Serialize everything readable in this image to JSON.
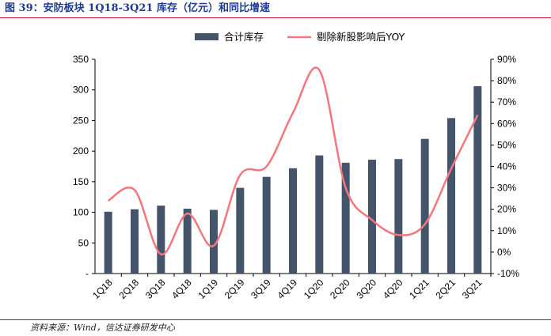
{
  "title": "图 39：安防板块 1Q18-3Q21 库存（亿元）和同比增速",
  "source": "资料来源：Wind，信达证券研发中心",
  "chart_data": {
    "type": "bar",
    "categories": [
      "1Q18",
      "2Q18",
      "3Q18",
      "4Q18",
      "1Q19",
      "2Q19",
      "3Q19",
      "4Q19",
      "1Q20",
      "2Q20",
      "3Q20",
      "4Q20",
      "1Q21",
      "2Q21",
      "3Q21"
    ],
    "series": [
      {
        "name": "合计库存",
        "type": "bar",
        "axis": "left",
        "color": "#44546a",
        "values": [
          101,
          105,
          111,
          106,
          104,
          140,
          158,
          172,
          193,
          181,
          186,
          187,
          220,
          254,
          306
        ]
      },
      {
        "name": "剔除新股影响后YOY",
        "type": "line",
        "axis": "right",
        "color": "#f4777e",
        "smooth": true,
        "values": [
          24,
          29,
          -1,
          18,
          3,
          36,
          40,
          65,
          85,
          30,
          15,
          8,
          13,
          39,
          64
        ]
      }
    ],
    "y_left": {
      "min": 0,
      "max": 350,
      "ticks": [
        "-",
        "50",
        "100",
        "150",
        "200",
        "250",
        "300",
        "350"
      ]
    },
    "y_right": {
      "min": -10,
      "max": 90,
      "ticks": [
        "-10%",
        "0%",
        "10%",
        "20%",
        "30%",
        "40%",
        "50%",
        "60%",
        "70%",
        "80%",
        "90%"
      ]
    },
    "legend_position": "top-center",
    "grid": false
  }
}
